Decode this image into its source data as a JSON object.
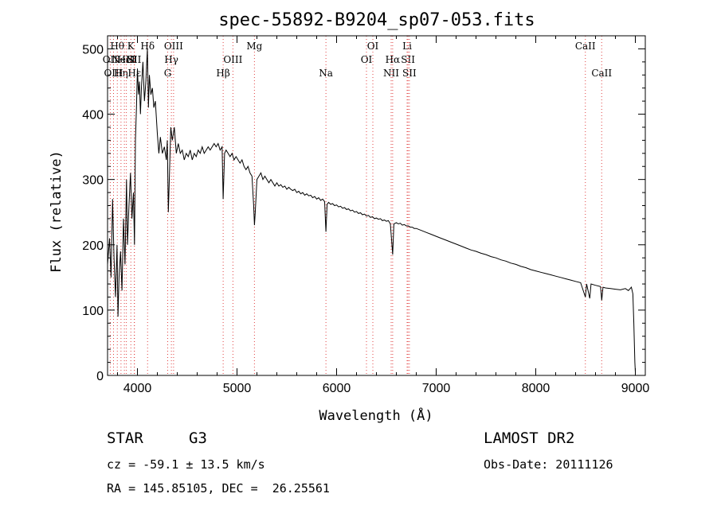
{
  "chart_data": {
    "type": "line",
    "title": "spec-55892-B9204_sp07-053.fits",
    "xlabel": "Wavelength (Å)",
    "ylabel": "Flux (relative)",
    "xlim": [
      3700,
      9100
    ],
    "ylim": [
      0,
      520
    ],
    "x_ticks": [
      4000,
      5000,
      6000,
      7000,
      8000,
      9000
    ],
    "y_ticks": [
      0,
      100,
      200,
      300,
      400,
      500
    ],
    "grid": false,
    "line_color": "#000000",
    "marker_color": "#e04040",
    "series": [
      {
        "points": [
          [
            3700,
            170
          ],
          [
            3720,
            210
          ],
          [
            3735,
            150
          ],
          [
            3750,
            270
          ],
          [
            3765,
            180
          ],
          [
            3780,
            120
          ],
          [
            3795,
            200
          ],
          [
            3805,
            90
          ],
          [
            3815,
            150
          ],
          [
            3830,
            190
          ],
          [
            3845,
            130
          ],
          [
            3860,
            240
          ],
          [
            3875,
            170
          ],
          [
            3890,
            300
          ],
          [
            3900,
            200
          ],
          [
            3915,
            260
          ],
          [
            3930,
            310
          ],
          [
            3945,
            240
          ],
          [
            3960,
            280
          ],
          [
            3970,
            200
          ],
          [
            3980,
            360
          ],
          [
            3990,
            410
          ],
          [
            4000,
            470
          ],
          [
            4010,
            430
          ],
          [
            4020,
            450
          ],
          [
            4030,
            400
          ],
          [
            4040,
            440
          ],
          [
            4055,
            480
          ],
          [
            4070,
            420
          ],
          [
            4085,
            450
          ],
          [
            4100,
            500
          ],
          [
            4110,
            410
          ],
          [
            4120,
            460
          ],
          [
            4135,
            430
          ],
          [
            4150,
            440
          ],
          [
            4165,
            410
          ],
          [
            4180,
            420
          ],
          [
            4200,
            370
          ],
          [
            4215,
            340
          ],
          [
            4230,
            365
          ],
          [
            4250,
            340
          ],
          [
            4270,
            350
          ],
          [
            4290,
            330
          ],
          [
            4300,
            360
          ],
          [
            4310,
            250
          ],
          [
            4320,
            300
          ],
          [
            4335,
            380
          ],
          [
            4350,
            360
          ],
          [
            4370,
            380
          ],
          [
            4390,
            340
          ],
          [
            4410,
            355
          ],
          [
            4430,
            340
          ],
          [
            4450,
            345
          ],
          [
            4470,
            330
          ],
          [
            4490,
            340
          ],
          [
            4510,
            335
          ],
          [
            4530,
            345
          ],
          [
            4550,
            330
          ],
          [
            4570,
            340
          ],
          [
            4590,
            335
          ],
          [
            4610,
            345
          ],
          [
            4630,
            340
          ],
          [
            4650,
            350
          ],
          [
            4670,
            340
          ],
          [
            4690,
            345
          ],
          [
            4710,
            350
          ],
          [
            4730,
            345
          ],
          [
            4750,
            350
          ],
          [
            4770,
            355
          ],
          [
            4790,
            350
          ],
          [
            4810,
            355
          ],
          [
            4830,
            345
          ],
          [
            4850,
            350
          ],
          [
            4861,
            270
          ],
          [
            4875,
            340
          ],
          [
            4890,
            345
          ],
          [
            4910,
            340
          ],
          [
            4930,
            335
          ],
          [
            4950,
            340
          ],
          [
            4970,
            330
          ],
          [
            4990,
            335
          ],
          [
            5010,
            330
          ],
          [
            5030,
            325
          ],
          [
            5050,
            330
          ],
          [
            5070,
            320
          ],
          [
            5090,
            315
          ],
          [
            5110,
            320
          ],
          [
            5130,
            310
          ],
          [
            5150,
            305
          ],
          [
            5167,
            260
          ],
          [
            5175,
            230
          ],
          [
            5183,
            250
          ],
          [
            5200,
            300
          ],
          [
            5220,
            305
          ],
          [
            5240,
            310
          ],
          [
            5260,
            300
          ],
          [
            5280,
            305
          ],
          [
            5300,
            300
          ],
          [
            5320,
            295
          ],
          [
            5340,
            300
          ],
          [
            5360,
            295
          ],
          [
            5380,
            290
          ],
          [
            5400,
            295
          ],
          [
            5420,
            290
          ],
          [
            5440,
            292
          ],
          [
            5460,
            288
          ],
          [
            5480,
            290
          ],
          [
            5500,
            285
          ],
          [
            5520,
            288
          ],
          [
            5540,
            285
          ],
          [
            5560,
            283
          ],
          [
            5580,
            285
          ],
          [
            5600,
            280
          ],
          [
            5620,
            282
          ],
          [
            5640,
            278
          ],
          [
            5660,
            280
          ],
          [
            5680,
            276
          ],
          [
            5700,
            278
          ],
          [
            5720,
            275
          ],
          [
            5740,
            276
          ],
          [
            5760,
            272
          ],
          [
            5780,
            274
          ],
          [
            5800,
            270
          ],
          [
            5820,
            272
          ],
          [
            5840,
            268
          ],
          [
            5860,
            270
          ],
          [
            5880,
            266
          ],
          [
            5893,
            220
          ],
          [
            5905,
            262
          ],
          [
            5920,
            265
          ],
          [
            5940,
            262
          ],
          [
            5960,
            263
          ],
          [
            5980,
            260
          ],
          [
            6000,
            261
          ],
          [
            6020,
            258
          ],
          [
            6040,
            259
          ],
          [
            6060,
            256
          ],
          [
            6080,
            257
          ],
          [
            6100,
            254
          ],
          [
            6120,
            255
          ],
          [
            6140,
            252
          ],
          [
            6160,
            253
          ],
          [
            6180,
            250
          ],
          [
            6200,
            251
          ],
          [
            6220,
            248
          ],
          [
            6240,
            249
          ],
          [
            6260,
            246
          ],
          [
            6280,
            247
          ],
          [
            6300,
            244
          ],
          [
            6320,
            245
          ],
          [
            6340,
            242
          ],
          [
            6360,
            243
          ],
          [
            6380,
            240
          ],
          [
            6400,
            241
          ],
          [
            6420,
            239
          ],
          [
            6440,
            240
          ],
          [
            6460,
            237
          ],
          [
            6480,
            238
          ],
          [
            6500,
            236
          ],
          [
            6520,
            237
          ],
          [
            6540,
            232
          ],
          [
            6563,
            185
          ],
          [
            6575,
            232
          ],
          [
            6600,
            234
          ],
          [
            6620,
            232
          ],
          [
            6640,
            233
          ],
          [
            6660,
            230
          ],
          [
            6680,
            231
          ],
          [
            6700,
            229
          ],
          [
            6720,
            229
          ],
          [
            6740,
            227
          ],
          [
            6760,
            227
          ],
          [
            6780,
            225
          ],
          [
            6800,
            225
          ],
          [
            6850,
            222
          ],
          [
            6900,
            219
          ],
          [
            6950,
            216
          ],
          [
            7000,
            213
          ],
          [
            7050,
            210
          ],
          [
            7100,
            207
          ],
          [
            7150,
            204
          ],
          [
            7200,
            201
          ],
          [
            7250,
            198
          ],
          [
            7300,
            195
          ],
          [
            7350,
            192
          ],
          [
            7400,
            190
          ],
          [
            7450,
            187
          ],
          [
            7500,
            185
          ],
          [
            7550,
            182
          ],
          [
            7600,
            180
          ],
          [
            7650,
            177
          ],
          [
            7700,
            175
          ],
          [
            7750,
            172
          ],
          [
            7800,
            170
          ],
          [
            7850,
            167
          ],
          [
            7900,
            165
          ],
          [
            7950,
            162
          ],
          [
            8000,
            160
          ],
          [
            8050,
            158
          ],
          [
            8100,
            156
          ],
          [
            8150,
            154
          ],
          [
            8200,
            152
          ],
          [
            8250,
            150
          ],
          [
            8300,
            148
          ],
          [
            8350,
            146
          ],
          [
            8400,
            144
          ],
          [
            8450,
            142
          ],
          [
            8498,
            120
          ],
          [
            8510,
            140
          ],
          [
            8542,
            118
          ],
          [
            8555,
            140
          ],
          [
            8600,
            138
          ],
          [
            8650,
            136
          ],
          [
            8662,
            115
          ],
          [
            8675,
            135
          ],
          [
            8700,
            134
          ],
          [
            8750,
            133
          ],
          [
            8800,
            132
          ],
          [
            8850,
            131
          ],
          [
            8900,
            133
          ],
          [
            8930,
            130
          ],
          [
            8960,
            135
          ],
          [
            8975,
            125
          ],
          [
            8985,
            80
          ],
          [
            8995,
            20
          ],
          [
            9000,
            5
          ]
        ]
      }
    ],
    "spectral_lines": [
      {
        "wavelength": 3727,
        "label": "OII",
        "row": 2
      },
      {
        "wavelength": 3760,
        "label": "OIII",
        "row": 3
      },
      {
        "wavelength": 3798,
        "label": "Hθ",
        "row": 1
      },
      {
        "wavelength": 3835,
        "label": "Hη",
        "row": 3
      },
      {
        "wavelength": 3869,
        "label": "NeIII",
        "row": 2
      },
      {
        "wavelength": 3889,
        "label": "HeI",
        "row": 2
      },
      {
        "wavelength": 3934,
        "label": "K",
        "row": 1
      },
      {
        "wavelength": 3968,
        "label": "SII",
        "row": 2
      },
      {
        "wavelength": 3970,
        "label": "Hε",
        "row": 3
      },
      {
        "wavelength": 4102,
        "label": "Hδ",
        "row": 1
      },
      {
        "wavelength": 4304,
        "label": "G",
        "row": 3
      },
      {
        "wavelength": 4341,
        "label": "Hγ",
        "row": 2
      },
      {
        "wavelength": 4363,
        "label": "OIII",
        "row": 1
      },
      {
        "wavelength": 4861,
        "label": "Hβ",
        "row": 3
      },
      {
        "wavelength": 4959,
        "label": "OIII",
        "row": 2
      },
      {
        "wavelength": 5175,
        "label": "Mg",
        "row": 1
      },
      {
        "wavelength": 5893,
        "label": "Na",
        "row": 3
      },
      {
        "wavelength": 6300,
        "label": "OI",
        "row": 2
      },
      {
        "wavelength": 6364,
        "label": "OI",
        "row": 1
      },
      {
        "wavelength": 6548,
        "label": "NII",
        "row": 3
      },
      {
        "wavelength": 6563,
        "label": "Hα",
        "row": 2
      },
      {
        "wavelength": 6708,
        "label": "Li",
        "row": 1
      },
      {
        "wavelength": 6717,
        "label": "SII",
        "row": 2
      },
      {
        "wavelength": 6731,
        "label": "SII",
        "row": 3
      },
      {
        "wavelength": 8498,
        "label": "CaII",
        "row": 1
      },
      {
        "wavelength": 8662,
        "label": "CaII",
        "row": 3
      }
    ]
  },
  "info": {
    "class_label": "STAR",
    "subclass": "G3",
    "survey": "LAMOST DR2",
    "cz": "cz = -59.1 ± 13.5 km/s",
    "obs_date": "Obs-Date: 20111126",
    "coords": "RA = 145.85105, DEC =  26.25561"
  }
}
